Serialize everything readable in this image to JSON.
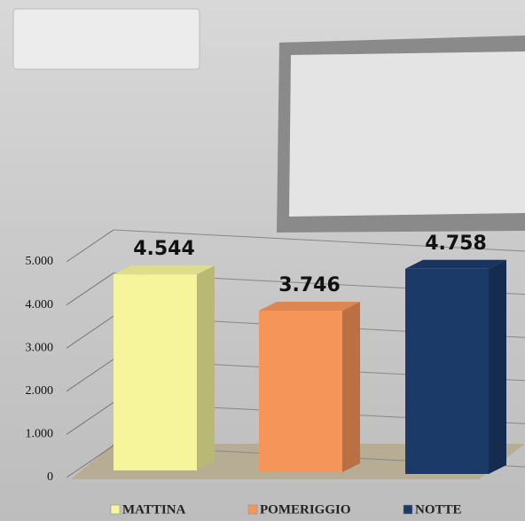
{
  "chart_data": {
    "type": "bar3d",
    "categories": [
      "MATTINA",
      "POMERIGGIO",
      "NOTTE"
    ],
    "values": [
      4544,
      3746,
      4758
    ],
    "value_labels": [
      "4.544",
      "3.746",
      "4.758"
    ],
    "colors": [
      "#f6f59c",
      "#f5955a",
      "#1c3a68"
    ],
    "ylim": [
      0,
      5000
    ],
    "yticks": [
      {
        "value": 0,
        "label": "0"
      },
      {
        "value": 1000,
        "label": "1.000"
      },
      {
        "value": 2000,
        "label": "2.000"
      },
      {
        "value": 3000,
        "label": "3.000"
      },
      {
        "value": 4000,
        "label": "4.000"
      },
      {
        "value": 5000,
        "label": "5.000"
      }
    ],
    "grid": true
  }
}
